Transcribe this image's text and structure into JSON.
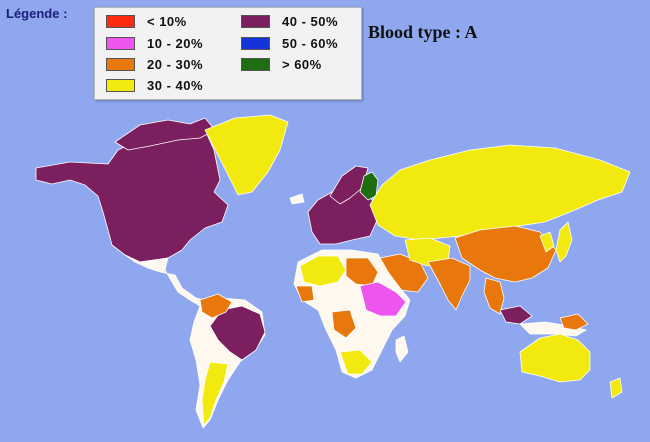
{
  "legend": {
    "title": "Légende :",
    "items": [
      {
        "label": "< 10%",
        "color": "#ff2a12"
      },
      {
        "label": "10 - 20%",
        "color": "#ee55ee"
      },
      {
        "label": "20 - 30%",
        "color": "#e8770c"
      },
      {
        "label": "30 - 40%",
        "color": "#f2ea0e"
      },
      {
        "label": "40 - 50%",
        "color": "#7b1f5f"
      },
      {
        "label": "50 - 60%",
        "color": "#1433d8"
      },
      {
        "label": "> 60%",
        "color": "#1e6d10"
      }
    ]
  },
  "map_title": "Blood type : A",
  "colors": {
    "ocean": "#8ea7ee",
    "no_data": "#fff8ee",
    "border": "#ffffff"
  }
}
